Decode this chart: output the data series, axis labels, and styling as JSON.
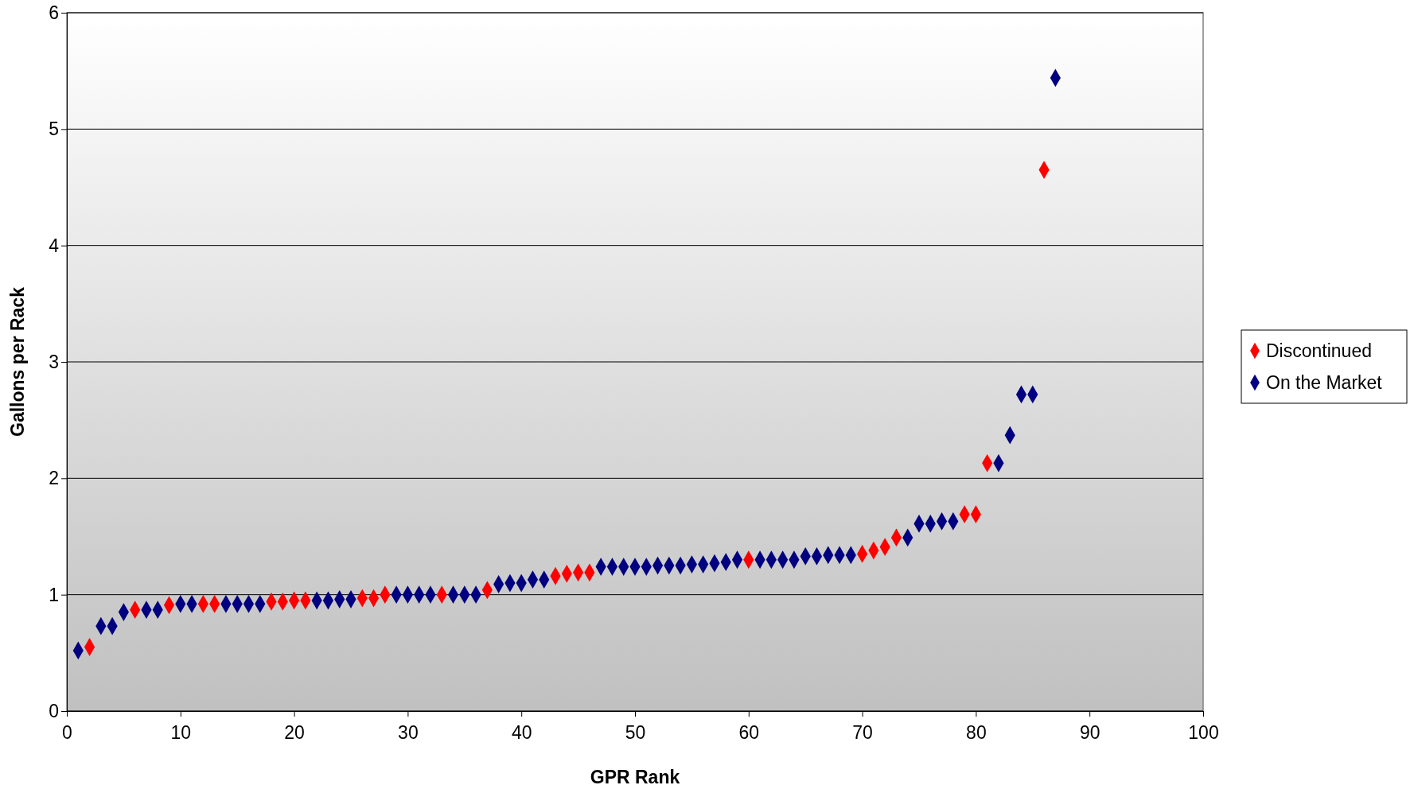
{
  "chart_data": {
    "type": "scatter",
    "xlabel": "GPR Rank",
    "ylabel": "Gallons per Rack",
    "xlim": [
      0,
      100
    ],
    "xticks": [
      0,
      10,
      20,
      30,
      40,
      50,
      60,
      70,
      80,
      90,
      100
    ],
    "ylim": [
      0,
      6
    ],
    "yticks": [
      0,
      1,
      2,
      3,
      4,
      5,
      6
    ],
    "grid": "y",
    "legend": "right",
    "marker": "diamond",
    "series": [
      {
        "name": "Discontinued",
        "color": "#ff0000",
        "x": [
          2,
          6,
          9,
          12,
          13,
          18,
          19,
          20,
          21,
          26,
          27,
          28,
          33,
          37,
          43,
          44,
          45,
          46,
          60,
          70,
          71,
          72,
          73,
          79,
          80,
          81,
          86
        ],
        "values": [
          0.55,
          0.87,
          0.91,
          0.92,
          0.92,
          0.94,
          0.94,
          0.95,
          0.95,
          0.97,
          0.97,
          1.0,
          1.0,
          1.04,
          1.16,
          1.18,
          1.19,
          1.19,
          1.3,
          1.35,
          1.38,
          1.41,
          1.49,
          1.69,
          1.69,
          2.13,
          4.65
        ]
      },
      {
        "name": "On the Market",
        "color": "#000080",
        "x": [
          1,
          3,
          4,
          5,
          7,
          8,
          10,
          11,
          14,
          15,
          16,
          17,
          22,
          23,
          24,
          25,
          29,
          30,
          31,
          32,
          34,
          35,
          36,
          38,
          39,
          40,
          41,
          42,
          47,
          48,
          49,
          50,
          51,
          52,
          53,
          54,
          55,
          56,
          57,
          58,
          59,
          61,
          62,
          63,
          64,
          65,
          66,
          67,
          68,
          69,
          74,
          75,
          76,
          77,
          78,
          82,
          83,
          84,
          85,
          87
        ],
        "values": [
          0.52,
          0.73,
          0.73,
          0.85,
          0.87,
          0.87,
          0.92,
          0.92,
          0.92,
          0.92,
          0.92,
          0.92,
          0.95,
          0.95,
          0.96,
          0.96,
          1.0,
          1.0,
          1.0,
          1.0,
          1.0,
          1.0,
          1.0,
          1.09,
          1.1,
          1.1,
          1.13,
          1.13,
          1.24,
          1.24,
          1.24,
          1.24,
          1.24,
          1.25,
          1.25,
          1.25,
          1.26,
          1.26,
          1.27,
          1.28,
          1.3,
          1.3,
          1.3,
          1.3,
          1.3,
          1.33,
          1.33,
          1.34,
          1.34,
          1.34,
          1.49,
          1.61,
          1.61,
          1.63,
          1.63,
          2.13,
          2.37,
          2.72,
          2.72,
          5.44
        ]
      }
    ]
  }
}
